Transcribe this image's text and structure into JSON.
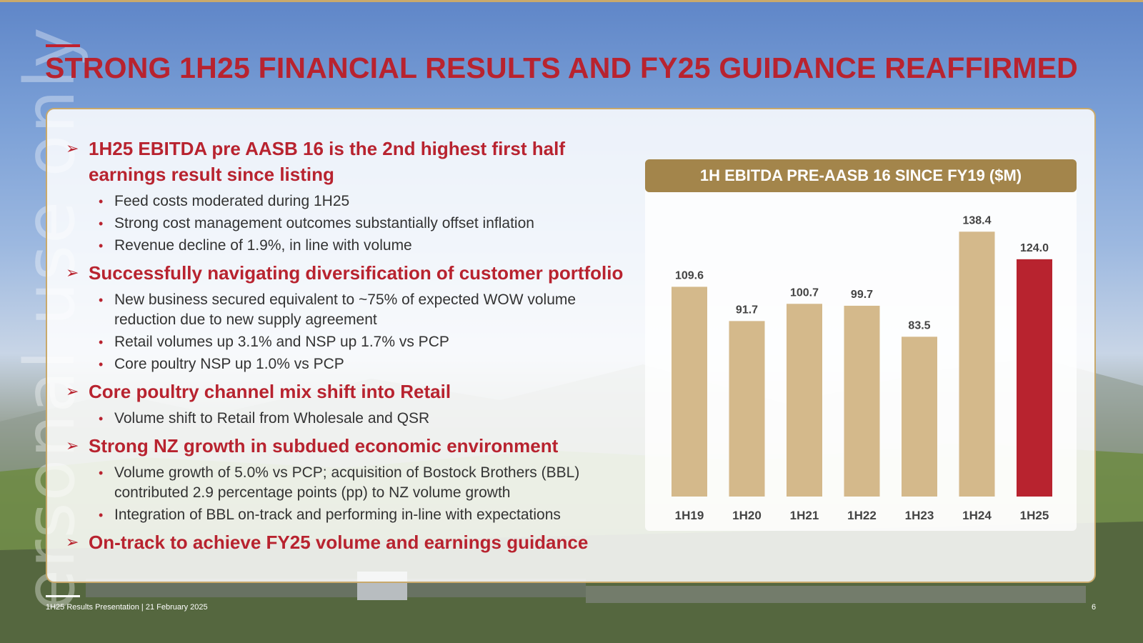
{
  "title": "STRONG 1H25 FINANCIAL RESULTS AND FY25 GUIDANCE REAFFIRMED",
  "watermark": "ersonal use only",
  "points": [
    {
      "heading": "1H25 EBITDA pre AASB 16 is the 2nd highest first half earnings result since listing",
      "bullets": [
        "Feed costs moderated during 1H25",
        "Strong cost management outcomes substantially offset inflation",
        "Revenue decline of 1.9%, in line with volume"
      ]
    },
    {
      "heading": "Successfully navigating diversification of customer portfolio",
      "bullets": [
        "New business secured equivalent to ~75% of expected WOW volume reduction due to new supply agreement",
        "Retail volumes up 3.1% and NSP up 1.7% vs PCP",
        "Core poultry NSP up 1.0% vs PCP"
      ]
    },
    {
      "heading": "Core poultry channel mix shift into Retail",
      "bullets": [
        "Volume shift to Retail from Wholesale and QSR"
      ]
    },
    {
      "heading": "Strong NZ growth in subdued economic environment",
      "bullets": [
        "Volume growth of 5.0% vs PCP; acquisition of Bostock Brothers (BBL) contributed 2.9 percentage points (pp) to NZ volume growth",
        "Integration of BBL on-track and performing in-line with expectations"
      ]
    },
    {
      "heading": "On-track to achieve FY25 volume and earnings guidance",
      "bullets": []
    }
  ],
  "chart_data": {
    "type": "bar",
    "title": "1H EBITDA PRE-AASB 16 SINCE FY19 ($M)",
    "categories": [
      "1H19",
      "1H20",
      "1H21",
      "1H22",
      "1H23",
      "1H24",
      "1H25"
    ],
    "values": [
      109.6,
      91.7,
      100.7,
      99.7,
      83.5,
      138.4,
      124.0
    ],
    "value_labels": [
      "109.6",
      "91.7",
      "100.7",
      "99.7",
      "83.5",
      "138.4",
      "124.0"
    ],
    "highlight_index": 6,
    "colors": {
      "bar": "#d4b98b",
      "highlight": "#b8232f",
      "header": "#a3854b"
    },
    "xlabel": "",
    "ylabel": "",
    "ylim": [
      0,
      140
    ]
  },
  "footer": {
    "text": "1H25 Results Presentation | 21 February 2025",
    "page": "6"
  },
  "icons": {
    "heading_marker": "arrow-marker-icon",
    "bullet_marker": "bullet-dot-icon"
  }
}
